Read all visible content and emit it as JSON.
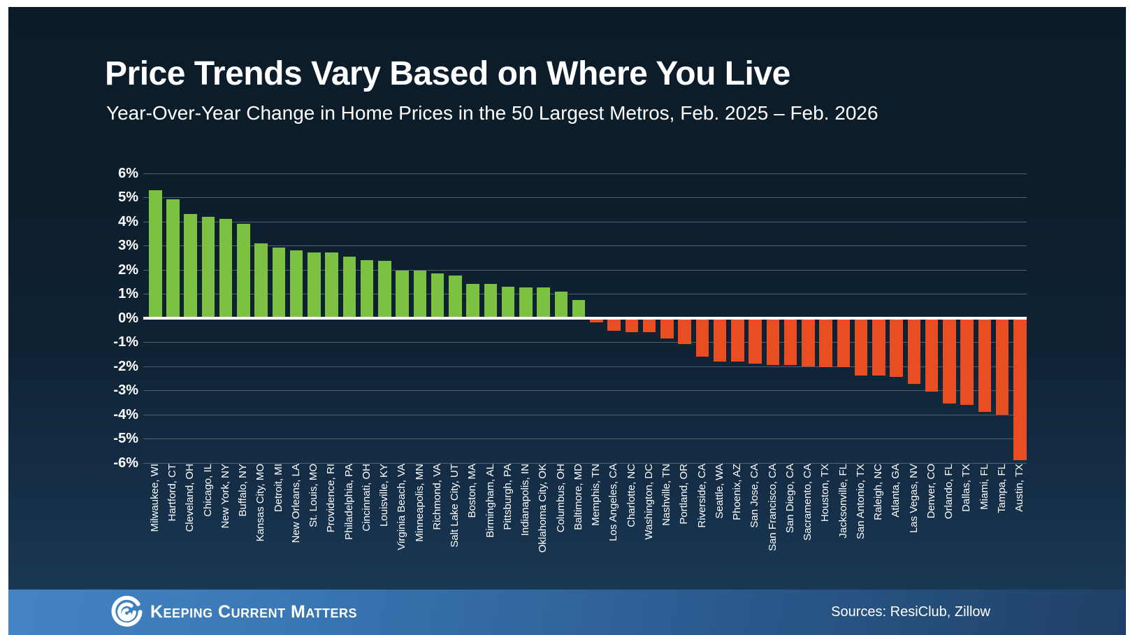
{
  "header": {
    "title": "Price Trends Vary Based on Where You Live",
    "subtitle": "Year-Over-Year Change in Home Prices in the 50 Largest Metros, Feb. 2025 – Feb. 2026"
  },
  "chart_data": {
    "type": "bar",
    "title": "Price Trends Vary Based on Where You Live",
    "subtitle": "Year-Over-Year Change in Home Prices in the 50 Largest Metros, Feb. 2025 – Feb. 2026",
    "xlabel": "",
    "ylabel": "",
    "ylim": [
      -6,
      6
    ],
    "grid": true,
    "legend": "none",
    "y_ticks": [
      "6%",
      "5%",
      "4%",
      "3%",
      "2%",
      "1%",
      "0%",
      "-1%",
      "-2%",
      "-3%",
      "-4%",
      "-5%",
      "-6%"
    ],
    "positive_color": "#7cc142",
    "negative_color": "#e84e22",
    "categories": [
      "Milwaukee, WI",
      "Hartford, CT",
      "Cleveland, OH",
      "Chicago, IL",
      "New York, NY",
      "Buffalo, NY",
      "Kansas City, MO",
      "Detroit, MI",
      "New Orleans, LA",
      "St. Louis, MO",
      "Providence, RI",
      "Philadelphia, PA",
      "Cincinnati, OH",
      "Louisville, KY",
      "Virginia Beach, VA",
      "Minneapolis, MN",
      "Richmond, VA",
      "Salt Lake City, UT",
      "Boston, MA",
      "Birmingham, AL",
      "Pittsburgh, PA",
      "Indianapolis, IN",
      "Oklahoma City, OK",
      "Columbus, OH",
      "Baltimore, MD",
      "Memphis, TN",
      "Los Angeles, CA",
      "Charlotte, NC",
      "Washington, DC",
      "Nashville, TN",
      "Portland, OR",
      "Riverside, CA",
      "Seattle, WA",
      "Phoenix, AZ",
      "San Jose, CA",
      "San Francisco, CA",
      "San Diego, CA",
      "Sacramento, CA",
      "Houston, TX",
      "Jacksonville, FL",
      "San Antonio, TX",
      "Raleigh, NC",
      "Atlanta, GA",
      "Las Vegas, NV",
      "Denver, CO",
      "Orlando, FL",
      "Dallas, TX",
      "Miami, FL",
      "Tampa, FL",
      "Austin, TX"
    ],
    "values": [
      5.3,
      4.9,
      4.3,
      4.2,
      4.1,
      3.9,
      3.1,
      2.9,
      2.8,
      2.7,
      2.7,
      2.55,
      2.4,
      2.35,
      1.95,
      1.95,
      1.85,
      1.75,
      1.4,
      1.4,
      1.3,
      1.25,
      1.25,
      1.1,
      0.75,
      -0.2,
      -0.55,
      -0.6,
      -0.6,
      -0.85,
      -1.1,
      -1.6,
      -1.8,
      -1.8,
      -1.9,
      -1.95,
      -1.95,
      -2.0,
      -2.05,
      -2.05,
      -2.4,
      -2.4,
      -2.45,
      -2.75,
      -3.05,
      -3.55,
      -3.6,
      -3.9,
      -4.0,
      -5.9
    ]
  },
  "footer": {
    "brand": "Keeping Current Matters",
    "sources": "Sources: ResiClub, Zillow",
    "logo": "kcm-swirl-logo"
  }
}
